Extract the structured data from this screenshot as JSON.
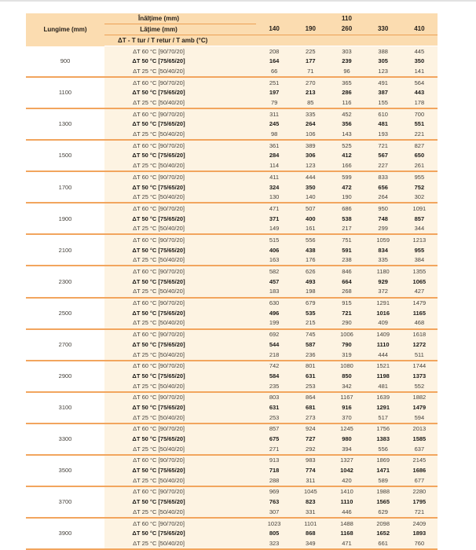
{
  "page": {
    "background": "#ffffff",
    "top_edge_color": "#e2e2e2"
  },
  "colors": {
    "header_bg": "#fbdcb0",
    "red_band_bg": "#d0262c",
    "red_band_text": "#ffffff",
    "data_bg": "#fdf3e2",
    "group_separator": "#f2a55e",
    "header_rule": "#eda155",
    "regular_text": "#45413b",
    "bold_text": "#1d1b18",
    "header_text": "#26201a"
  },
  "table": {
    "lungime_header": "Lungime (mm)",
    "inaltime_label": "Înălţime (mm)",
    "inaltime_value": "110",
    "latime_label": "Lăţime (mm)",
    "width_values": [
      "140",
      "190",
      "260",
      "330",
      "410"
    ],
    "dt_header": "ΔT - T tur / T retur / T amb (°C)",
    "row_labels": {
      "dt60": "ΔT 60 °C [90/70/20]",
      "dt50": "ΔT 50 °C [75/65/20]",
      "dt25": "ΔT 25 °C [50/40/20]"
    },
    "groups": [
      {
        "lungime": "900",
        "dt60": [
          208,
          225,
          303,
          388,
          445
        ],
        "dt50": [
          164,
          177,
          239,
          305,
          350
        ],
        "dt25": [
          66,
          71,
          96,
          123,
          141
        ]
      },
      {
        "lungime": "1100",
        "dt60": [
          251,
          270,
          365,
          491,
          564
        ],
        "dt50": [
          197,
          213,
          286,
          387,
          443
        ],
        "dt25": [
          79,
          85,
          116,
          155,
          178
        ]
      },
      {
        "lungime": "1300",
        "dt60": [
          311,
          335,
          452,
          610,
          700
        ],
        "dt50": [
          245,
          264,
          356,
          481,
          551
        ],
        "dt25": [
          98,
          106,
          143,
          193,
          221
        ]
      },
      {
        "lungime": "1500",
        "dt60": [
          361,
          389,
          525,
          721,
          827
        ],
        "dt50": [
          284,
          306,
          412,
          567,
          650
        ],
        "dt25": [
          114,
          123,
          166,
          227,
          261
        ]
      },
      {
        "lungime": "1700",
        "dt60": [
          411,
          444,
          599,
          833,
          955
        ],
        "dt50": [
          324,
          350,
          472,
          656,
          752
        ],
        "dt25": [
          130,
          140,
          190,
          264,
          302
        ]
      },
      {
        "lungime": "1900",
        "dt60": [
          471,
          507,
          686,
          950,
          1091
        ],
        "dt50": [
          371,
          400,
          538,
          748,
          857
        ],
        "dt25": [
          149,
          161,
          217,
          299,
          344
        ]
      },
      {
        "lungime": "2100",
        "dt60": [
          515,
          556,
          751,
          1059,
          1213
        ],
        "dt50": [
          406,
          438,
          591,
          834,
          955
        ],
        "dt25": [
          163,
          176,
          238,
          335,
          384
        ]
      },
      {
        "lungime": "2300",
        "dt60": [
          582,
          626,
          846,
          1180,
          1355
        ],
        "dt50": [
          457,
          493,
          664,
          929,
          1065
        ],
        "dt25": [
          183,
          198,
          268,
          372,
          427
        ]
      },
      {
        "lungime": "2500",
        "dt60": [
          630,
          679,
          915,
          1291,
          1479
        ],
        "dt50": [
          496,
          535,
          721,
          1016,
          1165
        ],
        "dt25": [
          199,
          215,
          290,
          409,
          468
        ]
      },
      {
        "lungime": "2700",
        "dt60": [
          692,
          745,
          1006,
          1409,
          1618
        ],
        "dt50": [
          544,
          587,
          790,
          1110,
          1272
        ],
        "dt25": [
          218,
          236,
          319,
          444,
          511
        ]
      },
      {
        "lungime": "2900",
        "dt60": [
          742,
          801,
          1080,
          1521,
          1744
        ],
        "dt50": [
          584,
          631,
          850,
          1198,
          1373
        ],
        "dt25": [
          235,
          253,
          342,
          481,
          552
        ]
      },
      {
        "lungime": "3100",
        "dt60": [
          803,
          864,
          1167,
          1639,
          1882
        ],
        "dt50": [
          631,
          681,
          916,
          1291,
          1479
        ],
        "dt25": [
          253,
          273,
          370,
          517,
          594
        ]
      },
      {
        "lungime": "3300",
        "dt60": [
          857,
          924,
          1245,
          1756,
          2013
        ],
        "dt50": [
          675,
          727,
          980,
          1383,
          1585
        ],
        "dt25": [
          271,
          292,
          394,
          556,
          637
        ]
      },
      {
        "lungime": "3500",
        "dt60": [
          913,
          983,
          1327,
          1869,
          2145
        ],
        "dt50": [
          718,
          774,
          1042,
          1471,
          1686
        ],
        "dt25": [
          288,
          311,
          420,
          589,
          677
        ]
      },
      {
        "lungime": "3700",
        "dt60": [
          969,
          1045,
          1410,
          1988,
          2280
        ],
        "dt50": [
          763,
          823,
          1110,
          1565,
          1795
        ],
        "dt25": [
          307,
          331,
          446,
          629,
          721
        ]
      },
      {
        "lungime": "3900",
        "dt60": [
          1023,
          1101,
          1488,
          2098,
          2409
        ],
        "dt50": [
          805,
          868,
          1168,
          1652,
          1893
        ],
        "dt25": [
          323,
          349,
          471,
          661,
          760
        ]
      }
    ]
  }
}
